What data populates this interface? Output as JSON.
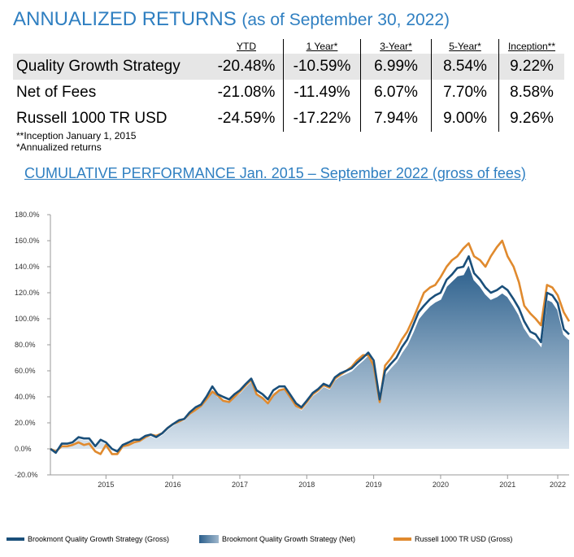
{
  "header": {
    "title": "ANNUALIZED RETURNS",
    "subtitle": "(as of September 30, 2022)"
  },
  "returns_table": {
    "columns": [
      "YTD",
      "1 Year*",
      "3-Year*",
      "5-Year*",
      "Inception**"
    ],
    "rows": [
      {
        "name": "Quality Growth Strategy",
        "values": [
          "-20.48%",
          "-10.59%",
          "6.99%",
          "8.54%",
          "9.22%"
        ]
      },
      {
        "name": "Net of Fees",
        "values": [
          "-21.08%",
          "-11.49%",
          "6.07%",
          "7.70%",
          "8.58%"
        ]
      },
      {
        "name": "Russell 1000 TR USD",
        "values": [
          "-24.59%",
          "-17.22%",
          "7.94%",
          "9.00%",
          "9.26%"
        ]
      }
    ]
  },
  "notes": [
    "**Inception January 1, 2015",
    "*Annualized returns"
  ],
  "chart_title": "CUMULATIVE PERFORMANCE Jan. 2015 – September 2022 (gross of fees)",
  "colors": {
    "accent": "#2f7fc1",
    "gross": "#1a4f7a",
    "net_fill_top": "#2b5f8c",
    "net_fill_bottom": "#dde7f0",
    "russell": "#e08a2e"
  },
  "chart_data": {
    "type": "area",
    "ylim": [
      -20,
      180
    ],
    "yticks": [
      "180.0%",
      "160.0%",
      "140.0%",
      "120.0%",
      "100.0%",
      "80.0%",
      "60.0%",
      "40.0%",
      "20.0%",
      "0.0%",
      "-20.0%"
    ],
    "yticks_values": [
      180,
      160,
      140,
      120,
      100,
      80,
      60,
      40,
      20,
      0,
      -20
    ],
    "xticks": [
      "2015",
      "2016",
      "2017",
      "2018",
      "2019",
      "2020",
      "2021",
      "2022"
    ],
    "xticks_pos": [
      2015.83,
      2016.83,
      2017.83,
      2018.83,
      2019.83,
      2020.83,
      2021.83,
      2022.58
    ],
    "xlim": [
      2015.0,
      2022.75
    ],
    "grid": false,
    "legend_position": "bottom",
    "series": [
      {
        "name": "Brookmont Quality Growth Strategy (Gross)",
        "style": "line",
        "x": [
          2015.0,
          2015.08,
          2015.17,
          2015.25,
          2015.33,
          2015.42,
          2015.5,
          2015.58,
          2015.67,
          2015.75,
          2015.83,
          2015.92,
          2016.0,
          2016.08,
          2016.17,
          2016.25,
          2016.33,
          2016.42,
          2016.5,
          2016.58,
          2016.67,
          2016.75,
          2016.83,
          2016.92,
          2017.0,
          2017.08,
          2017.17,
          2017.25,
          2017.33,
          2017.42,
          2017.5,
          2017.58,
          2017.67,
          2017.75,
          2017.83,
          2017.92,
          2018.0,
          2018.08,
          2018.17,
          2018.25,
          2018.33,
          2018.42,
          2018.5,
          2018.58,
          2018.67,
          2018.75,
          2018.83,
          2018.92,
          2019.0,
          2019.08,
          2019.17,
          2019.25,
          2019.33,
          2019.42,
          2019.5,
          2019.58,
          2019.67,
          2019.75,
          2019.83,
          2019.92,
          2020.0,
          2020.08,
          2020.17,
          2020.25,
          2020.33,
          2020.42,
          2020.5,
          2020.58,
          2020.67,
          2020.75,
          2020.83,
          2020.92,
          2021.0,
          2021.08,
          2021.17,
          2021.25,
          2021.33,
          2021.42,
          2021.5,
          2021.58,
          2021.67,
          2021.75,
          2021.83,
          2021.92,
          2022.0,
          2022.08,
          2022.17,
          2022.25,
          2022.33,
          2022.42,
          2022.5,
          2022.58,
          2022.67,
          2022.75
        ],
        "values": [
          0,
          -3,
          4,
          4,
          5,
          9,
          8,
          8,
          2,
          7,
          5,
          0,
          -2,
          3,
          5,
          7,
          7,
          10,
          11,
          9,
          12,
          16,
          19,
          22,
          23,
          28,
          32,
          34,
          40,
          48,
          42,
          40,
          38,
          42,
          45,
          50,
          54,
          45,
          42,
          38,
          45,
          48,
          48,
          42,
          35,
          32,
          37,
          43,
          46,
          50,
          48,
          55,
          58,
          60,
          62,
          66,
          70,
          74,
          68,
          38,
          60,
          65,
          70,
          78,
          84,
          95,
          105,
          110,
          115,
          118,
          120,
          130,
          134,
          139,
          140,
          148,
          135,
          130,
          124,
          120,
          122,
          125,
          122,
          115,
          108,
          98,
          90,
          88,
          82,
          120,
          118,
          112,
          92,
          88
        ]
      },
      {
        "name": "Brookmont Quality Growth Strategy (Net)",
        "style": "area",
        "x": [
          2015.0,
          2015.08,
          2015.17,
          2015.25,
          2015.33,
          2015.42,
          2015.5,
          2015.58,
          2015.67,
          2015.75,
          2015.83,
          2015.92,
          2016.0,
          2016.08,
          2016.17,
          2016.25,
          2016.33,
          2016.42,
          2016.5,
          2016.58,
          2016.67,
          2016.75,
          2016.83,
          2016.92,
          2017.0,
          2017.08,
          2017.17,
          2017.25,
          2017.33,
          2017.42,
          2017.5,
          2017.58,
          2017.67,
          2017.75,
          2017.83,
          2017.92,
          2018.0,
          2018.08,
          2018.17,
          2018.25,
          2018.33,
          2018.42,
          2018.5,
          2018.58,
          2018.67,
          2018.75,
          2018.83,
          2018.92,
          2019.0,
          2019.08,
          2019.17,
          2019.25,
          2019.33,
          2019.42,
          2019.5,
          2019.58,
          2019.67,
          2019.75,
          2019.83,
          2019.92,
          2020.0,
          2020.08,
          2020.17,
          2020.25,
          2020.33,
          2020.42,
          2020.5,
          2020.58,
          2020.67,
          2020.75,
          2020.83,
          2020.92,
          2021.0,
          2021.08,
          2021.17,
          2021.25,
          2021.33,
          2021.42,
          2021.5,
          2021.58,
          2021.67,
          2021.75,
          2021.83,
          2021.92,
          2022.0,
          2022.08,
          2022.17,
          2022.25,
          2022.33,
          2022.42,
          2022.5,
          2022.58,
          2022.67,
          2022.75
        ],
        "values": [
          0,
          -3,
          3,
          3,
          4,
          8,
          7,
          7,
          1,
          6,
          4,
          -1,
          -3,
          2,
          4,
          6,
          6,
          9,
          10,
          8,
          11,
          15,
          18,
          21,
          22,
          27,
          31,
          33,
          38,
          46,
          40,
          38,
          36,
          40,
          43,
          48,
          52,
          43,
          40,
          36,
          43,
          46,
          46,
          40,
          33,
          30,
          35,
          41,
          44,
          48,
          46,
          53,
          56,
          58,
          60,
          64,
          68,
          72,
          66,
          36,
          57,
          62,
          67,
          74,
          80,
          90,
          100,
          105,
          110,
          113,
          115,
          125,
          129,
          133,
          134,
          142,
          130,
          125,
          119,
          115,
          117,
          120,
          117,
          110,
          103,
          93,
          86,
          84,
          79,
          115,
          113,
          107,
          88,
          84
        ]
      },
      {
        "name": "Russell 1000 TR USD (Gross)",
        "style": "line",
        "x": [
          2015.0,
          2015.08,
          2015.17,
          2015.25,
          2015.33,
          2015.42,
          2015.5,
          2015.58,
          2015.67,
          2015.75,
          2015.83,
          2015.92,
          2016.0,
          2016.08,
          2016.17,
          2016.25,
          2016.33,
          2016.42,
          2016.5,
          2016.58,
          2016.67,
          2016.75,
          2016.83,
          2016.92,
          2017.0,
          2017.08,
          2017.17,
          2017.25,
          2017.33,
          2017.42,
          2017.5,
          2017.58,
          2017.67,
          2017.75,
          2017.83,
          2017.92,
          2018.0,
          2018.08,
          2018.17,
          2018.25,
          2018.33,
          2018.42,
          2018.5,
          2018.58,
          2018.67,
          2018.75,
          2018.83,
          2018.92,
          2019.0,
          2019.08,
          2019.17,
          2019.25,
          2019.33,
          2019.42,
          2019.5,
          2019.58,
          2019.67,
          2019.75,
          2019.83,
          2019.92,
          2020.0,
          2020.08,
          2020.17,
          2020.25,
          2020.33,
          2020.42,
          2020.5,
          2020.58,
          2020.67,
          2020.75,
          2020.83,
          2020.92,
          2021.0,
          2021.08,
          2021.17,
          2021.25,
          2021.33,
          2021.42,
          2021.5,
          2021.58,
          2021.67,
          2021.75,
          2021.83,
          2021.92,
          2022.0,
          2022.08,
          2022.17,
          2022.25,
          2022.33,
          2022.42,
          2022.5,
          2022.58,
          2022.67,
          2022.75
        ],
        "values": [
          0,
          -2,
          2,
          2,
          3,
          5,
          3,
          4,
          -2,
          -4,
          3,
          -4,
          -4,
          2,
          3,
          5,
          6,
          9,
          11,
          10,
          12,
          16,
          19,
          21,
          23,
          27,
          30,
          33,
          38,
          44,
          41,
          37,
          36,
          40,
          44,
          49,
          53,
          42,
          39,
          35,
          41,
          45,
          46,
          40,
          33,
          31,
          36,
          42,
          45,
          49,
          47,
          54,
          57,
          60,
          63,
          68,
          72,
          72,
          64,
          36,
          64,
          69,
          76,
          84,
          90,
          100,
          110,
          120,
          124,
          126,
          132,
          140,
          145,
          148,
          154,
          158,
          148,
          145,
          140,
          148,
          155,
          160,
          148,
          140,
          128,
          110,
          104,
          100,
          95,
          126,
          124,
          118,
          105,
          98
        ]
      }
    ]
  },
  "legend": [
    {
      "label": "Brookmont Quality Growth Strategy (Gross)",
      "type": "line"
    },
    {
      "label": "Brookmont Quality Growth Strategy (Net)",
      "type": "area"
    },
    {
      "label": "Russell 1000 TR USD (Gross)",
      "type": "line"
    }
  ]
}
